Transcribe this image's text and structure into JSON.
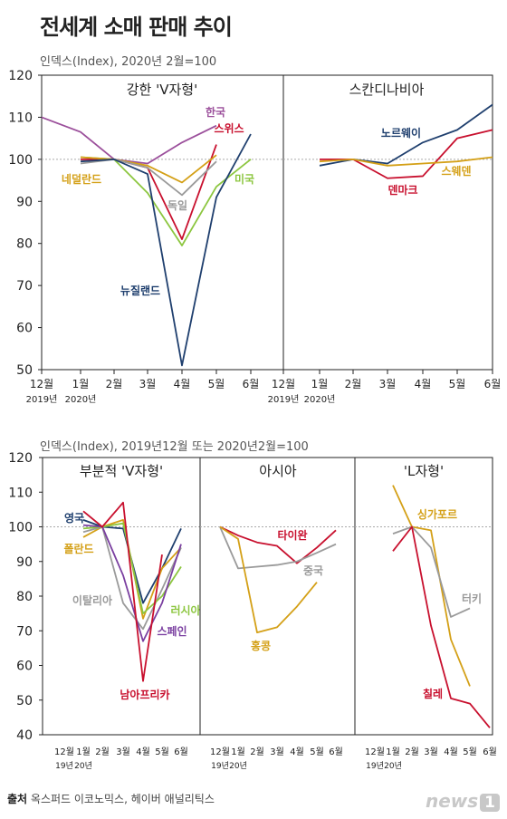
{
  "title": "전세계 소매 판매 추이",
  "top": {
    "index_note": "인덱스(Index), 2020년 2월=100",
    "y_ticks": [
      "120",
      "110",
      "100",
      "90",
      "80",
      "70",
      "60",
      "50"
    ],
    "x_labels": [
      "12월",
      "1월",
      "2월",
      "3월",
      "4월",
      "5월",
      "6월"
    ],
    "x_year_labels": [
      "2019년",
      "2020년"
    ]
  },
  "bottom": {
    "index_note": "인덱스(Index), 2019년12월 또는 2020년2월=100",
    "y_ticks": [
      "120",
      "110",
      "100",
      "90",
      "80",
      "70",
      "60",
      "50",
      "40"
    ],
    "x_labels": [
      "12월",
      "1월",
      "2월",
      "3월",
      "4월",
      "5월",
      "6월"
    ],
    "x_year_labels": [
      "19년",
      "20년"
    ]
  },
  "footer": {
    "source_label": "출처",
    "source_text": "옥스퍼드 이코노믹스, 헤이버 애널리틱스"
  },
  "logo": {
    "word": "news",
    "digit": "1"
  },
  "chart_data": [
    {
      "type": "line",
      "title": "강한 'V자형'",
      "categories": [
        "12월",
        "1월",
        "2월",
        "3월",
        "4월",
        "5월",
        "6월"
      ],
      "ylim": [
        50,
        120
      ],
      "series": [
        {
          "name": "한국",
          "color": "#9b4f9b",
          "values": [
            110,
            106.5,
            100,
            99,
            104,
            108,
            null
          ]
        },
        {
          "name": "스위스",
          "color": "#c8102e",
          "values": [
            null,
            100,
            100,
            98,
            81,
            103.5,
            null
          ]
        },
        {
          "name": "미국",
          "color": "#8cc63f",
          "values": [
            null,
            100.5,
            100,
            92,
            79.5,
            93.5,
            100
          ]
        },
        {
          "name": "네덜란드",
          "color": "#d4a017",
          "values": [
            null,
            100.5,
            100,
            98.5,
            94.5,
            101,
            null
          ]
        },
        {
          "name": "독일",
          "color": "#9a9a9a",
          "values": [
            null,
            99,
            100,
            98,
            91.5,
            99.5,
            null
          ]
        },
        {
          "name": "뉴질랜드",
          "color": "#1f3f6e",
          "values": [
            null,
            99.5,
            100,
            96.5,
            51,
            91,
            106
          ]
        }
      ]
    },
    {
      "type": "line",
      "title": "스칸디나비아",
      "categories": [
        "12월",
        "1월",
        "2월",
        "3월",
        "4월",
        "5월",
        "6월"
      ],
      "ylim": [
        50,
        120
      ],
      "series": [
        {
          "name": "노르웨이",
          "color": "#1f3f6e",
          "values": [
            null,
            98.5,
            100,
            99,
            104,
            107,
            113
          ]
        },
        {
          "name": "덴마크",
          "color": "#c8102e",
          "values": [
            null,
            100,
            100,
            95.5,
            96,
            105,
            107
          ]
        },
        {
          "name": "스웨덴",
          "color": "#d4a017",
          "values": [
            null,
            99.5,
            100,
            98.5,
            99,
            99.5,
            100.5
          ]
        }
      ]
    },
    {
      "type": "line",
      "title": "부분적 'V자형'",
      "categories": [
        "12월",
        "1월",
        "2월",
        "3월",
        "4월",
        "5월",
        "6월"
      ],
      "ylim": [
        40,
        120
      ],
      "series": [
        {
          "name": "영국",
          "color": "#1f3f6e",
          "values": [
            null,
            102,
            100,
            99.5,
            78,
            88,
            99.5
          ]
        },
        {
          "name": "폴란드",
          "color": "#d4a017",
          "values": [
            null,
            97,
            100,
            102,
            73.5,
            88,
            94
          ]
        },
        {
          "name": "이탈리아",
          "color": "#9a9a9a",
          "values": [
            null,
            98.5,
            100,
            78,
            70.5,
            82,
            94
          ]
        },
        {
          "name": "러시아",
          "color": "#8cc63f",
          "values": [
            null,
            99.5,
            100,
            101,
            75,
            80,
            88.5
          ]
        },
        {
          "name": "스페인",
          "color": "#7a3fa0",
          "values": [
            null,
            100.5,
            100,
            86,
            67,
            78,
            95
          ]
        },
        {
          "name": "남아프리카",
          "color": "#c8102e",
          "values": [
            null,
            104.5,
            100,
            107,
            55.5,
            92,
            null
          ]
        }
      ]
    },
    {
      "type": "line",
      "title": "아시아",
      "categories": [
        "12월",
        "1월",
        "2월",
        "3월",
        "4월",
        "5월",
        "6월"
      ],
      "ylim": [
        40,
        120
      ],
      "series": [
        {
          "name": "타이완",
          "color": "#c8102e",
          "values": [
            100,
            97.5,
            95.5,
            94.5,
            89.5,
            94,
            99
          ]
        },
        {
          "name": "중국",
          "color": "#9a9a9a",
          "values": [
            100,
            88,
            88.5,
            89,
            90,
            92.5,
            95
          ]
        },
        {
          "name": "홍콩",
          "color": "#d4a017",
          "values": [
            100,
            96.5,
            69.5,
            71,
            77,
            84,
            null
          ]
        }
      ]
    },
    {
      "type": "line",
      "title": "'L자형'",
      "categories": [
        "12월",
        "1월",
        "2월",
        "3월",
        "4월",
        "5월",
        "6월"
      ],
      "ylim": [
        40,
        120
      ],
      "series": [
        {
          "name": "싱가포르",
          "color": "#d4a017",
          "values": [
            null,
            112,
            100,
            99,
            67.5,
            54,
            null
          ]
        },
        {
          "name": "터키",
          "color": "#9a9a9a",
          "values": [
            null,
            98,
            100,
            94,
            74,
            76.5,
            null
          ]
        },
        {
          "name": "칠레",
          "color": "#c8102e",
          "values": [
            null,
            93,
            100,
            71.5,
            50.5,
            49,
            42
          ]
        }
      ]
    }
  ]
}
